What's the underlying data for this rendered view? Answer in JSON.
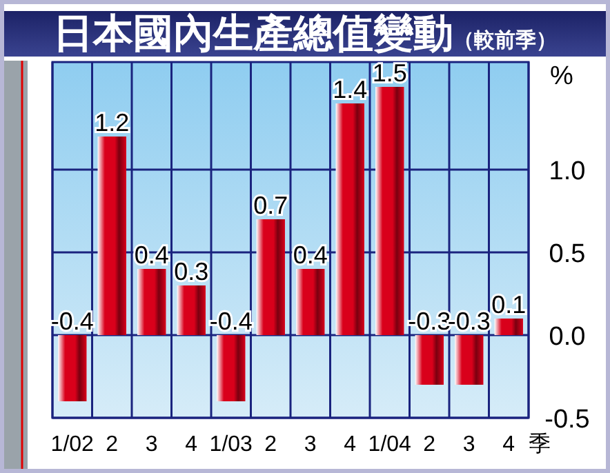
{
  "chart_data": {
    "type": "bar",
    "title": "日本國內生產總值變動",
    "subtitle": "（較前季）",
    "categories": [
      "1/02",
      "2",
      "3",
      "4",
      "1/03",
      "2",
      "3",
      "4",
      "1/04",
      "2",
      "3",
      "4"
    ],
    "values": [
      -0.4,
      1.2,
      0.4,
      0.3,
      -0.4,
      0.7,
      0.4,
      1.4,
      1.5,
      -0.3,
      -0.3,
      0.1
    ],
    "color": "#d9001b",
    "ylim": [
      -0.5,
      1.65
    ],
    "yticks": [
      {
        "value": -0.5,
        "label": "-0.5"
      },
      {
        "value": 0,
        "label": "0.0"
      },
      {
        "value": 0.5,
        "label": "0.5"
      },
      {
        "value": 1,
        "label": "1.0"
      }
    ],
    "ylabel": "%",
    "xlabel": "季",
    "grid": true,
    "data_labels": true
  }
}
